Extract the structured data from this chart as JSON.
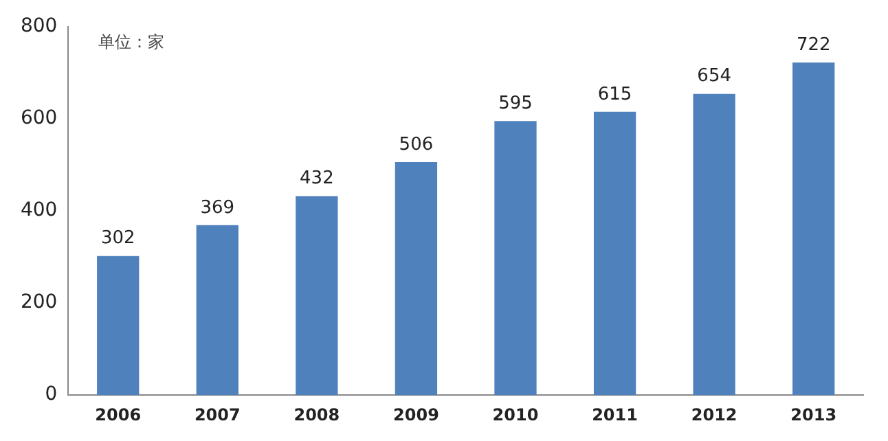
{
  "chart_data": {
    "type": "bar",
    "categories": [
      "2006",
      "2007",
      "2008",
      "2009",
      "2010",
      "2011",
      "2012",
      "2013"
    ],
    "values": [
      302,
      369,
      432,
      506,
      595,
      615,
      654,
      722
    ],
    "color": "#4f81bd",
    "ylim": [
      0,
      800
    ],
    "yticks": [
      0,
      200,
      400,
      600,
      800
    ],
    "grid": false,
    "legend": false,
    "data_labels": true,
    "annotations": [
      "单位：家"
    ]
  }
}
